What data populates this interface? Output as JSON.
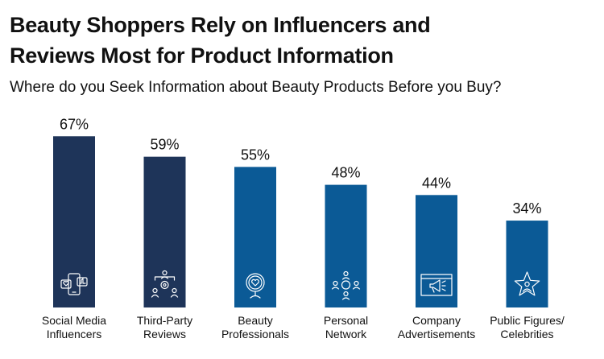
{
  "title_line1": "Beauty Shoppers Rely on Influencers and",
  "title_line2": "Reviews Most for Product Information",
  "subtitle": "Where do you Seek Information about Beauty Products Before you Buy?",
  "chart_data": {
    "type": "bar",
    "title": "Beauty Shoppers Rely on Influencers and Reviews Most for Product Information",
    "subtitle": "Where do you Seek Information about Beauty Products Before you Buy?",
    "categories": [
      [
        "Social Media",
        "Influencers"
      ],
      [
        "Third-Party",
        "Reviews"
      ],
      [
        "Beauty",
        "Professionals"
      ],
      [
        "Personal",
        "Network"
      ],
      [
        "Company",
        "Advertisements"
      ],
      [
        "Public Figures/",
        "Celebrities"
      ]
    ],
    "values": [
      67,
      59,
      55,
      48,
      44,
      34
    ],
    "value_labels": [
      "67%",
      "59%",
      "55%",
      "48%",
      "44%",
      "34%"
    ],
    "icons": [
      "phone-social-icon",
      "network-gear-icon",
      "mirror-heart-icon",
      "people-circle-icon",
      "megaphone-screen-icon",
      "star-person-icon"
    ],
    "bar_colors": [
      "#1e3459",
      "#1e3459",
      "#0b5a96",
      "#0b5a96",
      "#0b5a96",
      "#0b5a96"
    ],
    "ylim": [
      0,
      100
    ],
    "grid": false,
    "legend": "none"
  }
}
